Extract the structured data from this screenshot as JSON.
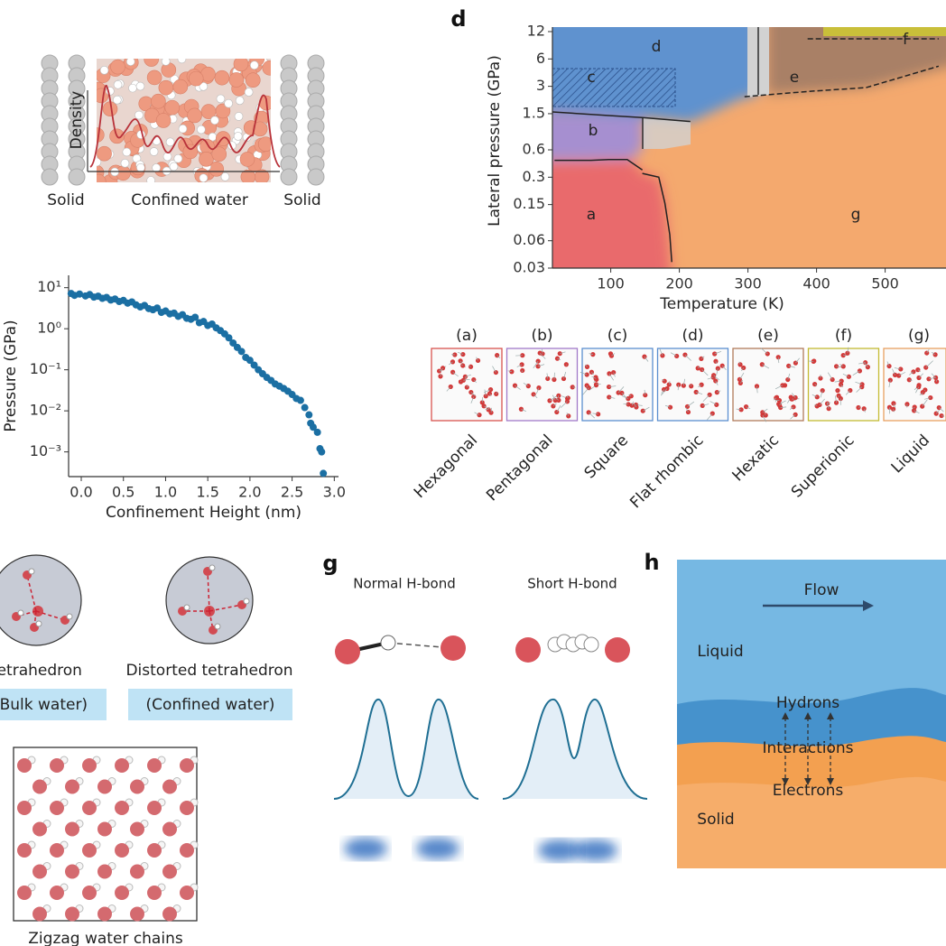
{
  "chart_data": [
    {
      "type": "scatter",
      "x_label": "Confinement Height (nm)",
      "y_label": "Pressure (GPa)",
      "color": "#1b6fa3",
      "log_y": true,
      "xlim": [
        -0.15,
        3.05
      ],
      "ylim": [
        0.00025,
        20
      ],
      "xticks": [
        {
          "value": 0,
          "label": "0.0"
        },
        0.5,
        {
          "value": 1,
          "label": "1.0"
        },
        1.5,
        {
          "value": 2,
          "label": "2.0"
        },
        2.5,
        {
          "value": 3,
          "label": "3.0"
        }
      ],
      "yticks": [
        {
          "value": 10,
          "label": "10¹"
        },
        {
          "value": 1,
          "label": "10⁰"
        },
        {
          "value": 0.1,
          "label": "10⁻¹"
        },
        {
          "value": 0.01,
          "label": "10⁻²"
        },
        {
          "value": 0.001,
          "label": "10⁻³"
        }
      ],
      "x": [
        -0.12,
        -0.08,
        -0.02,
        0.05,
        0.1,
        0.15,
        0.2,
        0.25,
        0.3,
        0.35,
        0.4,
        0.45,
        0.5,
        0.55,
        0.6,
        0.65,
        0.7,
        0.75,
        0.8,
        0.85,
        0.9,
        0.95,
        1.0,
        1.05,
        1.1,
        1.15,
        1.2,
        1.25,
        1.3,
        1.35,
        1.4,
        1.45,
        1.5,
        1.55,
        1.6,
        1.65,
        1.7,
        1.75,
        1.8,
        1.85,
        1.9,
        1.95,
        2.0,
        2.05,
        2.1,
        2.15,
        2.2,
        2.25,
        2.3,
        2.35,
        2.4,
        2.45,
        2.5,
        2.55,
        2.6,
        2.65,
        2.7,
        2.72,
        2.75,
        2.8,
        2.83,
        2.85,
        2.87
      ],
      "values": [
        7.2,
        6.5,
        7.0,
        6.3,
        6.8,
        5.9,
        6.2,
        5.5,
        5.8,
        5.0,
        5.3,
        4.6,
        4.9,
        4.2,
        4.5,
        3.8,
        3.4,
        3.7,
        3.1,
        2.9,
        3.2,
        2.5,
        2.7,
        2.3,
        2.4,
        2.0,
        2.2,
        1.8,
        1.7,
        1.9,
        1.4,
        1.5,
        1.2,
        1.3,
        1.05,
        0.9,
        0.75,
        0.6,
        0.45,
        0.35,
        0.28,
        0.2,
        0.17,
        0.13,
        0.1,
        0.08,
        0.065,
        0.055,
        0.045,
        0.04,
        0.035,
        0.03,
        0.025,
        0.02,
        0.018,
        0.012,
        0.008,
        0.005,
        0.004,
        0.003,
        0.0012,
        0.001,
        0.0003
      ]
    },
    {
      "type": "line",
      "panel": "d",
      "x_label": "Temperature (K)",
      "y_label": "Lateral pressure (GPa)",
      "log_y": true,
      "color": "#222222",
      "xlim": [
        15,
        590
      ],
      "ylim": [
        0.03,
        12
      ],
      "xticks": [
        100,
        200,
        300,
        400,
        500
      ],
      "yticks": [
        12,
        6,
        3,
        1.5,
        0.6,
        0.3,
        0.15,
        0.06,
        0.03
      ],
      "region_labels": [
        "a",
        "b",
        "c",
        "d",
        "e",
        "f",
        "g"
      ],
      "series": [
        {
          "x": [
            18,
            71,
            97,
            124,
            146
          ],
          "values": [
            0.46,
            0.46,
            0.47,
            0.47,
            0.36
          ]
        },
        {
          "x": [
            146,
            170,
            179,
            186,
            189
          ],
          "values": [
            0.33,
            0.3,
            0.155,
            0.07,
            0.035
          ]
        },
        {
          "x": [
            14,
            97,
            146,
            216
          ],
          "values": [
            1.57,
            1.43,
            1.36,
            1.23
          ]
        },
        {
          "x": [
            295,
            328,
            393,
            472,
            578
          ],
          "values": [
            2.31,
            2.42,
            2.65,
            2.9,
            5.0
          ]
        },
        {
          "x": [
            387,
            480,
            578
          ],
          "values": [
            10,
            10,
            10
          ]
        }
      ]
    }
  ],
  "panel_a": {
    "left": "Solid",
    "middle": "Confined water",
    "right": "Solid",
    "axis": "Density"
  },
  "structures": {
    "letters": [
      "(a)",
      "(b)",
      "(c)",
      "(d)",
      "(e)",
      "(f)",
      "(g)"
    ],
    "names": [
      "Hexagonal",
      "Pentagonal",
      "Square",
      "Flat rhombic",
      "Hexatic",
      "Superionic",
      "Liquid"
    ]
  },
  "panel_e": {
    "left": "Tetrahedron",
    "right": "Distorted tetrahedron",
    "left_note": "(Bulk water)",
    "right_note": "(Confined water)"
  },
  "panel_f": {
    "caption": "Zigzag water chains"
  },
  "panel_g": {
    "letter": "g",
    "left": "Normal H-bond",
    "right": "Short H-bond"
  },
  "panel_h": {
    "letter": "h",
    "flow": "Flow",
    "liquid": "Liquid",
    "hydrons": "Hydrons",
    "interactions": "Interactions",
    "electrons": "Electrons",
    "solid": "Solid"
  }
}
